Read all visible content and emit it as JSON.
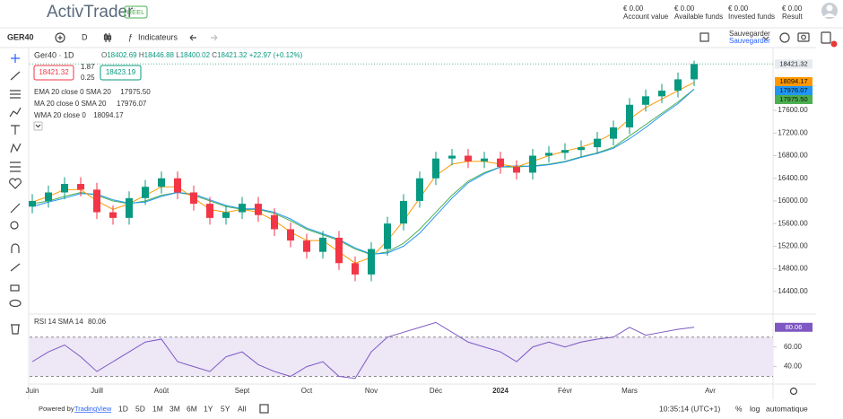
{
  "header": {
    "logo": "ActivTrader",
    "account_type": "RÉEL",
    "balances": [
      {
        "amount": "€ 0.00",
        "label": "Account value"
      },
      {
        "amount": "€ 0.00",
        "label": "Available funds"
      },
      {
        "amount": "€ 0.00",
        "label": "Invested funds"
      },
      {
        "amount": "€ 0.00",
        "label": "Result"
      }
    ]
  },
  "toolbar": {
    "symbol": "GER40",
    "interval": "D",
    "indicators": "Indicateurs",
    "save": "Sauvegarder",
    "save_sub": "Sauvegarder"
  },
  "legend": {
    "title": "Ger40 · 1D",
    "open_label": "O",
    "open": "18402.69",
    "high_label": "H",
    "high": "18446.88",
    "low_label": "L",
    "low": "18400.02",
    "close_label": "C",
    "close": "18421.32",
    "change": "+22.97 (+0.12%)"
  },
  "quote_boxes": {
    "bid": "18421.32",
    "spread_top": "1.87",
    "spread_bottom": "0.25",
    "ask": "18423.19"
  },
  "chart_data": [
    {
      "type": "candlestick",
      "categories": [
        "Juin",
        null,
        null,
        null,
        "Juill",
        null,
        null,
        null,
        "Août",
        null,
        null,
        null,
        null,
        "Sept",
        null,
        null,
        null,
        "Oct",
        null,
        null,
        null,
        "Nov",
        null,
        null,
        null,
        "Déc",
        null,
        null,
        null,
        "2024",
        null,
        null,
        null,
        "Févr",
        null,
        null,
        null,
        "Mars",
        null,
        null,
        null,
        null,
        "Avr"
      ],
      "open": [
        15900,
        16000,
        16150,
        16300,
        16200,
        15800,
        15700,
        16050,
        16250,
        16400,
        16150,
        15950,
        15700,
        15800,
        15950,
        15750,
        15500,
        15300,
        15100,
        15350,
        14900,
        14700,
        15150,
        15600,
        16000,
        16400,
        16750,
        16800,
        16700,
        16750,
        16600,
        16500,
        16800,
        16850,
        16900,
        16950,
        17100,
        17300,
        17700,
        17850,
        17950,
        18150,
        null
      ],
      "high": [
        16120,
        16270,
        16420,
        16420,
        16320,
        15920,
        16170,
        16370,
        16520,
        16520,
        16270,
        16070,
        15920,
        16070,
        16070,
        15870,
        15620,
        15420,
        15470,
        15470,
        15020,
        15270,
        15720,
        16120,
        16520,
        16870,
        16920,
        16920,
        16870,
        16870,
        16720,
        16920,
        16970,
        17020,
        17070,
        17220,
        17420,
        17820,
        17970,
        18070,
        18270,
        18480,
        null
      ],
      "low": [
        15780,
        15880,
        16030,
        16080,
        15680,
        15580,
        15580,
        15930,
        16130,
        16030,
        15830,
        15580,
        15580,
        15680,
        15630,
        15380,
        15180,
        14980,
        14980,
        14780,
        14580,
        14580,
        15030,
        15480,
        15880,
        16280,
        16630,
        16580,
        16580,
        16480,
        16380,
        16380,
        16680,
        16730,
        16780,
        16830,
        16980,
        17180,
        17580,
        17730,
        17830,
        18030,
        null
      ],
      "close": [
        16000,
        16150,
        16300,
        16200,
        15800,
        15700,
        16050,
        16250,
        16400,
        16150,
        15950,
        15700,
        15800,
        15950,
        15750,
        15500,
        15300,
        15100,
        15350,
        14900,
        14700,
        15150,
        15600,
        16000,
        16400,
        16750,
        16800,
        16700,
        16750,
        16600,
        16500,
        16800,
        16850,
        16900,
        16950,
        17100,
        17300,
        17700,
        17850,
        17950,
        18150,
        18421.32,
        null
      ],
      "up_color": "#089981",
      "down_color": "#f23645",
      "last_price_color": "#5bb88a",
      "series": [
        {
          "name": "EMA 20 close 0 SMA 20",
          "color": "#4caf50",
          "last_label": "17975.50",
          "values": [
            15950,
            16000,
            16080,
            16150,
            16100,
            16000,
            15950,
            16000,
            16100,
            16150,
            16100,
            16000,
            15900,
            15850,
            15850,
            15780,
            15650,
            15500,
            15400,
            15300,
            15150,
            15050,
            15100,
            15250,
            15500,
            15800,
            16100,
            16350,
            16500,
            16600,
            16600,
            16620,
            16650,
            16700,
            16780,
            16850,
            16950,
            17150,
            17350,
            17550,
            17750,
            17975.5,
            null
          ]
        },
        {
          "name": "MA 20 close 0 SMA 20",
          "color": "#2196f3",
          "last_label": "17976.07",
          "values": [
            15900,
            15980,
            16050,
            16130,
            16120,
            16020,
            15960,
            15980,
            16080,
            16150,
            16120,
            16020,
            15920,
            15860,
            15860,
            15800,
            15680,
            15520,
            15420,
            15320,
            15170,
            15060,
            15080,
            15200,
            15430,
            15740,
            16050,
            16320,
            16480,
            16600,
            16620,
            16610,
            16640,
            16690,
            16770,
            16840,
            16930,
            17100,
            17300,
            17520,
            17720,
            17976.07,
            null
          ]
        },
        {
          "name": "WMA 20 close 0",
          "color": "#ff9800",
          "last_label": "18094.17",
          "values": [
            15980,
            16080,
            16200,
            16200,
            16000,
            15850,
            15950,
            16100,
            16250,
            16250,
            16050,
            15850,
            15800,
            15850,
            15800,
            15650,
            15450,
            15300,
            15300,
            15100,
            14900,
            15000,
            15300,
            15650,
            16050,
            16450,
            16650,
            16700,
            16700,
            16650,
            16600,
            16700,
            16800,
            16880,
            16950,
            17050,
            17200,
            17450,
            17650,
            17800,
            17950,
            18094.17,
            null
          ]
        }
      ],
      "ylim": [
        14080,
        18680
      ],
      "yticks": [
        {
          "value": 17600,
          "label": "17600.00"
        },
        {
          "value": 17200,
          "label": "17200.00"
        },
        {
          "value": 16800,
          "label": "16800.00"
        },
        {
          "value": 16400,
          "label": "16400.00"
        },
        {
          "value": 16000,
          "label": "16000.00"
        },
        {
          "value": 15600,
          "label": "15600.00"
        },
        {
          "value": 15200,
          "label": "15200.00"
        },
        {
          "value": 14800,
          "label": "14800.00"
        },
        {
          "value": 14400,
          "label": "14400.00"
        }
      ]
    },
    {
      "type": "line",
      "name": "RSI 14 SMA 14",
      "color": "#7e57c2",
      "band_color": "#ede7f6",
      "values": [
        45,
        55,
        62,
        50,
        35,
        45,
        55,
        65,
        68,
        45,
        40,
        35,
        50,
        55,
        42,
        35,
        30,
        40,
        45,
        30,
        28,
        55,
        70,
        75,
        80,
        85,
        75,
        65,
        60,
        55,
        45,
        60,
        65,
        60,
        65,
        68,
        70,
        80,
        72,
        75,
        78,
        80.06,
        null
      ],
      "bands": [
        30,
        70
      ],
      "ylim": [
        25,
        89
      ],
      "yticks": [
        {
          "value": 60,
          "label": "60.00"
        },
        {
          "value": 40,
          "label": "40.00"
        }
      ]
    }
  ],
  "footer": {
    "powered_by": "Powered by",
    "provider": "TradingView",
    "ranges": [
      "1D",
      "5D",
      "1M",
      "3M",
      "6M",
      "1Y",
      "5Y",
      "All"
    ],
    "clock": "10:35:14 (UTC+1)",
    "percent": "%",
    "log": "log",
    "auto": "automatique"
  }
}
